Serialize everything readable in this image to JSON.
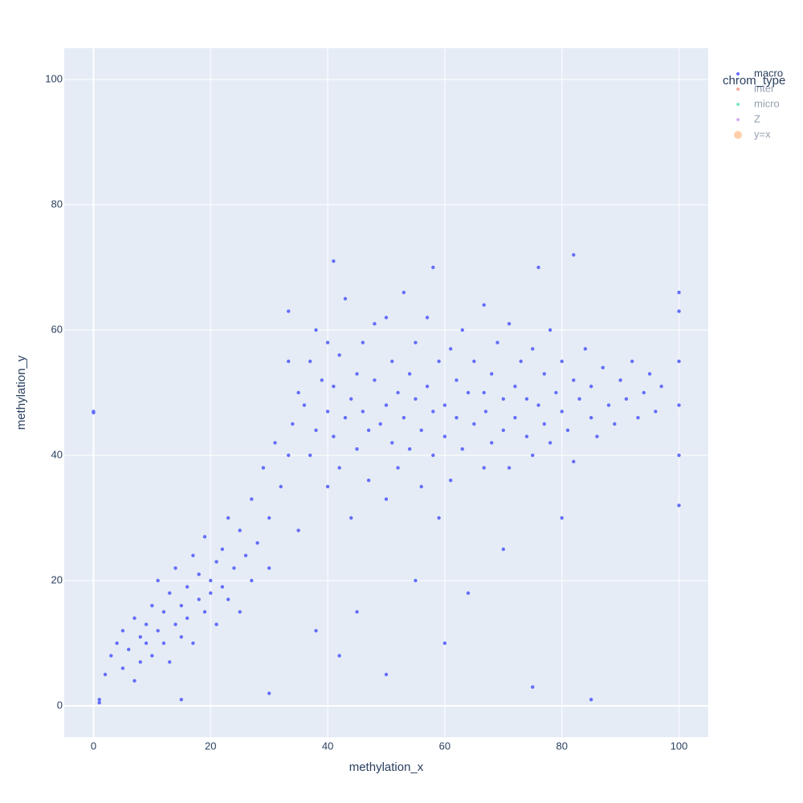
{
  "chart_data": {
    "type": "scatter",
    "xlabel": "methylation_x",
    "ylabel": "methylation_y",
    "legend_title": "chrom_type",
    "xlim": [
      -5,
      105
    ],
    "ylim": [
      -5,
      105
    ],
    "xticks": [
      0,
      20,
      40,
      60,
      80,
      100
    ],
    "yticks": [
      0,
      20,
      40,
      60,
      80,
      100
    ],
    "grid": true,
    "legend_position": "right",
    "series": [
      {
        "name": "macro",
        "color": "#636efa",
        "visible": true,
        "x": [
          0,
          0,
          1,
          1,
          2,
          3,
          4,
          5,
          5,
          6,
          7,
          7,
          8,
          8,
          9,
          9,
          10,
          10,
          11,
          11,
          12,
          12,
          13,
          13,
          14,
          14,
          15,
          15,
          16,
          16,
          17,
          17,
          18,
          18,
          19,
          19,
          20,
          20,
          21,
          21,
          22,
          22,
          23,
          23,
          24,
          25,
          25,
          26,
          27,
          27,
          28,
          29,
          30,
          30,
          31,
          32,
          33.3,
          33.3,
          33.3,
          34,
          35,
          35,
          36,
          37,
          37,
          38,
          38,
          39,
          40,
          40,
          40,
          41,
          41,
          42,
          42,
          43,
          43,
          44,
          44,
          45,
          45,
          46,
          46,
          47,
          47,
          48,
          48,
          49,
          50,
          50,
          50,
          51,
          51,
          52,
          52,
          53,
          53,
          54,
          54,
          55,
          55,
          56,
          56,
          57,
          57,
          58,
          58,
          59,
          59,
          60,
          60,
          61,
          61,
          62,
          62,
          63,
          63,
          64,
          65,
          65,
          66.7,
          66.7,
          66.7,
          67,
          68,
          68,
          69,
          70,
          70,
          71,
          71,
          72,
          72,
          73,
          74,
          74,
          75,
          75,
          76,
          77,
          77,
          78,
          78,
          79,
          80,
          80,
          81,
          82,
          82,
          83,
          84,
          85,
          85,
          86,
          87,
          88,
          89,
          90,
          91,
          92,
          93,
          94,
          95,
          96,
          97,
          100,
          100,
          100,
          100,
          100,
          100,
          60,
          55,
          45,
          70,
          80,
          64,
          42,
          38,
          50,
          75,
          85,
          30,
          15,
          58,
          76,
          82,
          41
        ],
        "y": [
          47,
          46.8,
          1,
          0.5,
          5,
          8,
          10,
          6,
          12,
          9,
          14,
          4,
          11,
          7,
          13,
          10,
          8,
          16,
          12,
          20,
          10,
          15,
          18,
          7,
          13,
          22,
          16,
          11,
          19,
          14,
          24,
          10,
          17,
          21,
          15,
          27,
          20,
          18,
          23,
          13,
          25,
          19,
          17,
          30,
          22,
          28,
          15,
          24,
          33,
          20,
          26,
          38,
          30,
          22,
          42,
          35,
          40,
          55,
          63,
          45,
          50,
          28,
          48,
          55,
          40,
          44,
          60,
          52,
          35,
          47,
          58,
          43,
          51,
          56,
          38,
          46,
          65,
          49,
          30,
          53,
          41,
          47,
          58,
          44,
          36,
          52,
          61,
          45,
          33,
          48,
          62,
          42,
          55,
          50,
          38,
          46,
          66,
          53,
          41,
          49,
          58,
          44,
          35,
          51,
          62,
          47,
          40,
          55,
          30,
          48,
          43,
          57,
          36,
          46,
          52,
          41,
          60,
          50,
          45,
          55,
          38,
          50,
          64,
          47,
          53,
          42,
          58,
          49,
          44,
          61,
          38,
          51,
          46,
          55,
          43,
          49,
          57,
          40,
          48,
          53,
          45,
          60,
          42,
          50,
          47,
          55,
          44,
          52,
          39,
          49,
          57,
          46,
          51,
          43,
          54,
          48,
          45,
          52,
          49,
          55,
          46,
          50,
          53,
          47,
          51,
          32,
          40,
          48,
          55,
          63,
          66,
          10,
          20,
          15,
          25,
          30,
          18,
          8,
          12,
          5,
          3,
          1,
          2,
          1,
          70,
          70,
          72,
          71
        ]
      },
      {
        "name": "inter",
        "color": "#EF553B",
        "visible": "legendonly",
        "x": [],
        "y": []
      },
      {
        "name": "micro",
        "color": "#00cc96",
        "visible": "legendonly",
        "x": [],
        "y": []
      },
      {
        "name": "Z",
        "color": "#ab63fa",
        "visible": "legendonly",
        "x": [],
        "y": []
      },
      {
        "name": "y=x",
        "color": "#FFA15A",
        "visible": "legendonly",
        "x": [],
        "y": []
      }
    ]
  }
}
